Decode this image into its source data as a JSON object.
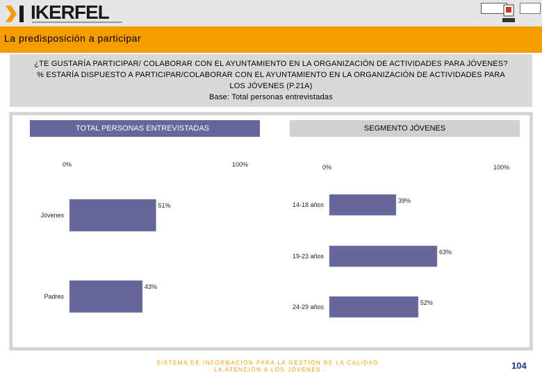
{
  "header": {
    "logo_text": "IKERFEL"
  },
  "title": "La predisposición a participar",
  "question": {
    "line1": "¿TE GUSTARÍA PARTICIPAR/ COLABORAR CON EL AYUNTAMIENTO EN LA ORGANIZACIÓN DE ACTIVIDADES PARA JÓVENES?",
    "line2": "% ESTARÍA DISPUESTO A PARTICIPAR/COLABORAR CON EL AYUNTAMIENTO EN LA ORGANIZACIÓN DE ACTIVIDADES PARA LOS JÓVENES (P.21A)",
    "base": "Base: Total personas entrevistadas"
  },
  "chart_data": [
    {
      "type": "bar",
      "orientation": "horizontal",
      "title": "TOTAL PERSONAS ENTREVISTADAS",
      "axis_min_label": "0%",
      "axis_max_label": "100%",
      "xlim": [
        0,
        100
      ],
      "categories": [
        "Jóvenes",
        "Padres"
      ],
      "values": [
        51,
        43
      ],
      "value_labels": [
        "51%",
        "43%"
      ],
      "color": "#66669a"
    },
    {
      "type": "bar",
      "orientation": "horizontal",
      "title": "SEGMENTO JÓVENES",
      "axis_min_label": "0%",
      "axis_max_label": "100%",
      "xlim": [
        0,
        100
      ],
      "categories": [
        "14-18 años",
        "19-23 años",
        "24-29 años"
      ],
      "values": [
        39,
        63,
        52
      ],
      "value_labels": [
        "39%",
        "63%",
        "52%"
      ],
      "color": "#66669a"
    }
  ],
  "footer": {
    "line1": "SISTEMA DE INFORMACIÓN PARA LA GESTIÓN DE LA CALIDAD",
    "line2": "- LA ATENCIÓN A LOS JÓVENES -",
    "page": "104"
  }
}
